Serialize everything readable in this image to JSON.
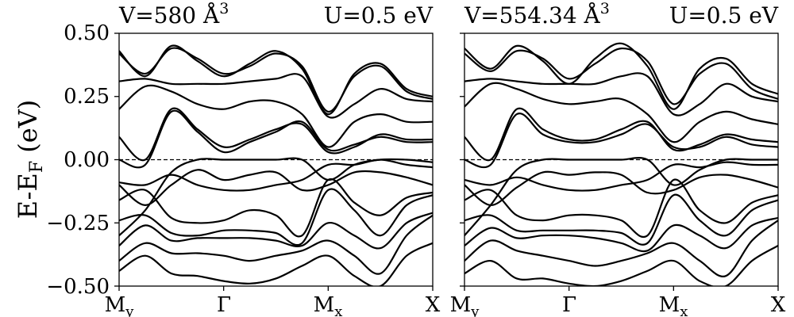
{
  "figure": {
    "ylabel": "E-E",
    "ylabel_sub": "F",
    "ylabel_unit": " (eV)"
  },
  "chart_data": [
    {
      "type": "line",
      "title_left": "V=580 Å",
      "title_left_sup": "3",
      "title_right": "U=0.5 eV",
      "x_ticks": [
        {
          "label": "M",
          "sub": "y"
        },
        {
          "label": "Γ",
          "sub": ""
        },
        {
          "label": "M",
          "sub": "x"
        },
        {
          "label": "X",
          "sub": ""
        }
      ],
      "y_ticks": [
        "0.50",
        "0.25",
        "0.00",
        "−0.25",
        "−0.50"
      ],
      "y_tick_values": [
        0.5,
        0.25,
        0.0,
        -0.25,
        -0.5
      ],
      "ylim": [
        -0.5,
        0.5
      ],
      "xlim": [
        0,
        3
      ],
      "fermi_level": 0.0,
      "series": [
        {
          "x": [
            0,
            0.25,
            0.5,
            0.75,
            1,
            1.25,
            1.5,
            1.75,
            2,
            2.25,
            2.5,
            2.75,
            3
          ],
          "y": [
            0.43,
            0.33,
            0.45,
            0.39,
            0.33,
            0.38,
            0.43,
            0.36,
            0.18,
            0.34,
            0.38,
            0.28,
            0.25
          ]
        },
        {
          "x": [
            0,
            0.25,
            0.5,
            0.75,
            1,
            1.25,
            1.5,
            1.75,
            2,
            2.25,
            2.5,
            2.75,
            3
          ],
          "y": [
            0.42,
            0.34,
            0.44,
            0.4,
            0.34,
            0.37,
            0.42,
            0.37,
            0.19,
            0.33,
            0.37,
            0.27,
            0.24
          ]
        },
        {
          "x": [
            0,
            0.25,
            0.5,
            0.75,
            1,
            1.25,
            1.5,
            1.75,
            2,
            2.25,
            2.5,
            2.75,
            3
          ],
          "y": [
            0.31,
            0.32,
            0.3,
            0.3,
            0.3,
            0.31,
            0.32,
            0.33,
            0.17,
            0.22,
            0.28,
            0.24,
            0.23
          ]
        },
        {
          "x": [
            0,
            0.25,
            0.5,
            0.75,
            1,
            1.25,
            1.5,
            1.75,
            2,
            2.25,
            2.5,
            2.75,
            3
          ],
          "y": [
            0.2,
            0.29,
            0.27,
            0.22,
            0.2,
            0.23,
            0.23,
            0.18,
            0.05,
            0.15,
            0.18,
            0.15,
            0.15
          ]
        },
        {
          "x": [
            0,
            0.25,
            0.5,
            0.75,
            1,
            1.25,
            1.5,
            1.75,
            2,
            2.25,
            2.5,
            2.75,
            3
          ],
          "y": [
            0.09,
            0.0,
            0.2,
            0.12,
            0.05,
            0.08,
            0.12,
            0.14,
            0.03,
            0.05,
            0.1,
            0.08,
            0.08
          ]
        },
        {
          "x": [
            0,
            0.25,
            0.5,
            0.75,
            1,
            1.25,
            1.5,
            1.75,
            2,
            2.25,
            2.5,
            2.75,
            3
          ],
          "y": [
            0.0,
            -0.02,
            0.19,
            0.11,
            0.03,
            0.07,
            0.11,
            0.15,
            0.04,
            0.06,
            0.09,
            0.07,
            0.07
          ]
        },
        {
          "x": [
            0,
            0.25,
            0.5,
            0.75,
            1,
            1.25,
            1.5,
            1.75,
            2,
            2.25,
            2.5,
            2.75,
            3
          ],
          "y": [
            -0.3,
            -0.2,
            -0.05,
            0.0,
            0.0,
            0.0,
            0.0,
            0.0,
            -0.08,
            -0.02,
            0.0,
            0.0,
            -0.01
          ]
        },
        {
          "x": [
            0,
            0.25,
            0.5,
            0.75,
            1,
            1.25,
            1.5,
            1.75,
            2,
            2.25,
            2.5,
            2.75,
            3
          ],
          "y": [
            -0.09,
            -0.1,
            -0.06,
            -0.1,
            -0.12,
            -0.12,
            -0.1,
            -0.08,
            -0.02,
            -0.02,
            0.0,
            -0.02,
            -0.03
          ]
        },
        {
          "x": [
            0,
            0.25,
            0.5,
            0.75,
            1,
            1.25,
            1.5,
            1.75,
            2,
            2.25,
            2.5,
            2.75,
            3
          ],
          "y": [
            -0.1,
            -0.18,
            -0.1,
            -0.04,
            -0.08,
            -0.06,
            -0.05,
            -0.12,
            -0.1,
            -0.05,
            -0.05,
            -0.07,
            -0.1
          ]
        },
        {
          "x": [
            0,
            0.25,
            0.5,
            0.75,
            1,
            1.25,
            1.5,
            1.75,
            2,
            2.25,
            2.5,
            2.75,
            3
          ],
          "y": [
            -0.16,
            -0.12,
            -0.23,
            -0.25,
            -0.24,
            -0.2,
            -0.22,
            -0.3,
            -0.08,
            -0.17,
            -0.22,
            -0.15,
            -0.13
          ]
        },
        {
          "x": [
            0,
            0.25,
            0.5,
            0.75,
            1,
            1.25,
            1.5,
            1.75,
            2,
            2.25,
            2.5,
            2.75,
            3
          ],
          "y": [
            -0.24,
            -0.22,
            -0.29,
            -0.3,
            -0.28,
            -0.28,
            -0.29,
            -0.33,
            -0.12,
            -0.2,
            -0.3,
            -0.18,
            -0.14
          ]
        },
        {
          "x": [
            0,
            0.25,
            0.5,
            0.75,
            1,
            1.25,
            1.5,
            1.75,
            2,
            2.25,
            2.5,
            2.75,
            3
          ],
          "y": [
            -0.34,
            -0.26,
            -0.32,
            -0.31,
            -0.31,
            -0.31,
            -0.32,
            -0.34,
            -0.25,
            -0.3,
            -0.35,
            -0.25,
            -0.21
          ]
        },
        {
          "x": [
            0,
            0.25,
            0.5,
            0.75,
            1,
            1.25,
            1.5,
            1.75,
            2,
            2.25,
            2.5,
            2.75,
            3
          ],
          "y": [
            -0.4,
            -0.33,
            -0.37,
            -0.37,
            -0.38,
            -0.4,
            -0.38,
            -0.36,
            -0.32,
            -0.38,
            -0.45,
            -0.3,
            -0.22
          ]
        },
        {
          "x": [
            0,
            0.25,
            0.5,
            0.75,
            1,
            1.25,
            1.5,
            1.75,
            2,
            2.25,
            2.5,
            2.75,
            3
          ],
          "y": [
            -0.44,
            -0.38,
            -0.45,
            -0.46,
            -0.48,
            -0.49,
            -0.47,
            -0.42,
            -0.38,
            -0.46,
            -0.5,
            -0.38,
            -0.33
          ]
        }
      ]
    },
    {
      "type": "line",
      "title_left": "V=554.34 Å",
      "title_left_sup": "3",
      "title_right": "U=0.5 eV",
      "x_ticks": [
        {
          "label": "M",
          "sub": "y"
        },
        {
          "label": "Γ",
          "sub": ""
        },
        {
          "label": "M",
          "sub": "x"
        },
        {
          "label": "X",
          "sub": ""
        }
      ],
      "y_ticks": [
        "0.50",
        "0.25",
        "0.00",
        "−0.25",
        "−0.50"
      ],
      "y_tick_values": [
        0.5,
        0.25,
        0.0,
        -0.25,
        -0.5
      ],
      "ylim": [
        -0.5,
        0.5
      ],
      "xlim": [
        0,
        3
      ],
      "fermi_level": 0.0,
      "series": [
        {
          "x": [
            0,
            0.25,
            0.5,
            0.75,
            1,
            1.25,
            1.5,
            1.75,
            2,
            2.25,
            2.5,
            2.75,
            3
          ],
          "y": [
            0.44,
            0.36,
            0.45,
            0.39,
            0.3,
            0.4,
            0.46,
            0.37,
            0.2,
            0.36,
            0.4,
            0.3,
            0.26
          ]
        },
        {
          "x": [
            0,
            0.25,
            0.5,
            0.75,
            1,
            1.25,
            1.5,
            1.75,
            2,
            2.25,
            2.5,
            2.75,
            3
          ],
          "y": [
            0.42,
            0.35,
            0.43,
            0.4,
            0.32,
            0.38,
            0.44,
            0.39,
            0.22,
            0.34,
            0.38,
            0.28,
            0.24
          ]
        },
        {
          "x": [
            0,
            0.25,
            0.5,
            0.75,
            1,
            1.25,
            1.5,
            1.75,
            2,
            2.25,
            2.5,
            2.75,
            3
          ],
          "y": [
            0.31,
            0.32,
            0.31,
            0.3,
            0.3,
            0.3,
            0.33,
            0.33,
            0.18,
            0.22,
            0.3,
            0.25,
            0.23
          ]
        },
        {
          "x": [
            0,
            0.25,
            0.5,
            0.75,
            1,
            1.25,
            1.5,
            1.75,
            2,
            2.25,
            2.5,
            2.75,
            3
          ],
          "y": [
            0.21,
            0.3,
            0.28,
            0.24,
            0.22,
            0.23,
            0.24,
            0.18,
            0.07,
            0.15,
            0.19,
            0.16,
            0.14
          ]
        },
        {
          "x": [
            0,
            0.25,
            0.5,
            0.75,
            1,
            1.25,
            1.5,
            1.75,
            2,
            2.25,
            2.5,
            2.75,
            3
          ],
          "y": [
            0.09,
            0.0,
            0.2,
            0.12,
            0.08,
            0.08,
            0.12,
            0.15,
            0.04,
            0.06,
            0.1,
            0.08,
            0.07
          ]
        },
        {
          "x": [
            0,
            0.25,
            0.5,
            0.75,
            1,
            1.25,
            1.5,
            1.75,
            2,
            2.25,
            2.5,
            2.75,
            3
          ],
          "y": [
            0.0,
            -0.02,
            0.18,
            0.1,
            0.07,
            0.07,
            0.1,
            0.14,
            0.05,
            0.05,
            0.09,
            0.06,
            0.05
          ]
        },
        {
          "x": [
            0,
            0.25,
            0.5,
            0.75,
            1,
            1.25,
            1.5,
            1.75,
            2,
            2.25,
            2.5,
            2.75,
            3
          ],
          "y": [
            -0.3,
            -0.18,
            -0.04,
            0.0,
            0.0,
            0.0,
            0.0,
            0.0,
            -0.1,
            -0.04,
            0.0,
            0.0,
            0.0
          ]
        },
        {
          "x": [
            0,
            0.25,
            0.5,
            0.75,
            1,
            1.25,
            1.5,
            1.75,
            2,
            2.25,
            2.5,
            2.75,
            3
          ],
          "y": [
            -0.08,
            -0.1,
            -0.07,
            -0.1,
            -0.12,
            -0.12,
            -0.1,
            -0.08,
            -0.02,
            -0.03,
            -0.01,
            -0.02,
            -0.02
          ]
        },
        {
          "x": [
            0,
            0.25,
            0.5,
            0.75,
            1,
            1.25,
            1.5,
            1.75,
            2,
            2.25,
            2.5,
            2.75,
            3
          ],
          "y": [
            -0.1,
            -0.18,
            -0.11,
            -0.05,
            -0.06,
            -0.05,
            -0.06,
            -0.13,
            -0.12,
            -0.07,
            -0.06,
            -0.08,
            -0.11
          ]
        },
        {
          "x": [
            0,
            0.25,
            0.5,
            0.75,
            1,
            1.25,
            1.5,
            1.75,
            2,
            2.25,
            2.5,
            2.75,
            3
          ],
          "y": [
            -0.16,
            -0.12,
            -0.22,
            -0.24,
            -0.22,
            -0.22,
            -0.24,
            -0.3,
            -0.08,
            -0.2,
            -0.25,
            -0.17,
            -0.14
          ]
        },
        {
          "x": [
            0,
            0.25,
            0.5,
            0.75,
            1,
            1.25,
            1.5,
            1.75,
            2,
            2.25,
            2.5,
            2.75,
            3
          ],
          "y": [
            -0.24,
            -0.22,
            -0.28,
            -0.28,
            -0.28,
            -0.28,
            -0.29,
            -0.33,
            -0.14,
            -0.24,
            -0.3,
            -0.2,
            -0.16
          ]
        },
        {
          "x": [
            0,
            0.25,
            0.5,
            0.75,
            1,
            1.25,
            1.5,
            1.75,
            2,
            2.25,
            2.5,
            2.75,
            3
          ],
          "y": [
            -0.34,
            -0.27,
            -0.31,
            -0.3,
            -0.3,
            -0.31,
            -0.33,
            -0.36,
            -0.26,
            -0.3,
            -0.35,
            -0.26,
            -0.23
          ]
        },
        {
          "x": [
            0,
            0.25,
            0.5,
            0.75,
            1,
            1.25,
            1.5,
            1.75,
            2,
            2.25,
            2.5,
            2.75,
            3
          ],
          "y": [
            -0.4,
            -0.32,
            -0.36,
            -0.38,
            -0.4,
            -0.42,
            -0.4,
            -0.37,
            -0.33,
            -0.4,
            -0.46,
            -0.32,
            -0.24
          ]
        },
        {
          "x": [
            0,
            0.25,
            0.5,
            0.75,
            1,
            1.25,
            1.5,
            1.75,
            2,
            2.25,
            2.5,
            2.75,
            3
          ],
          "y": [
            -0.45,
            -0.4,
            -0.47,
            -0.47,
            -0.49,
            -0.5,
            -0.48,
            -0.44,
            -0.4,
            -0.48,
            -0.5,
            -0.4,
            -0.34
          ]
        }
      ]
    }
  ]
}
